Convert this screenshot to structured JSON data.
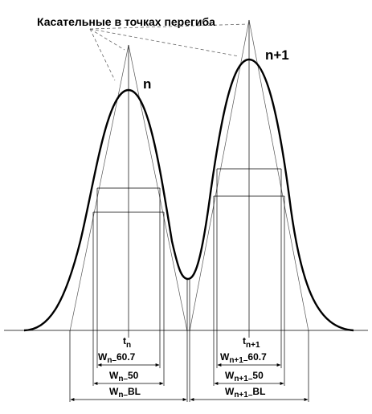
{
  "title": "Касательные в точках перегиба",
  "peaks": {
    "n_label": "n",
    "n1_label": "n+1"
  },
  "labels": {
    "tn_main": "t",
    "tn_sub": "n",
    "tn1_main": "t",
    "tn1_sub": "n+1",
    "w_n_607_main": "W",
    "w_n_607_sub": "n–",
    "w_n_607_tail": "60.7",
    "w_n_50_main": "W",
    "w_n_50_sub": "n–",
    "w_n_50_tail": "50",
    "w_n_bl_main": "W",
    "w_n_bl_sub": "n–",
    "w_n_bl_tail": "BL",
    "w_n1_607_main": "W",
    "w_n1_607_sub": "n+1–",
    "w_n1_607_tail": "60.7",
    "w_n1_50_main": "W",
    "w_n1_50_sub": "n+1–",
    "w_n1_50_tail": "50",
    "w_n1_bl_main": "W",
    "w_n1_bl_sub": "n+1–",
    "w_n1_bl_tail": "BL"
  }
}
